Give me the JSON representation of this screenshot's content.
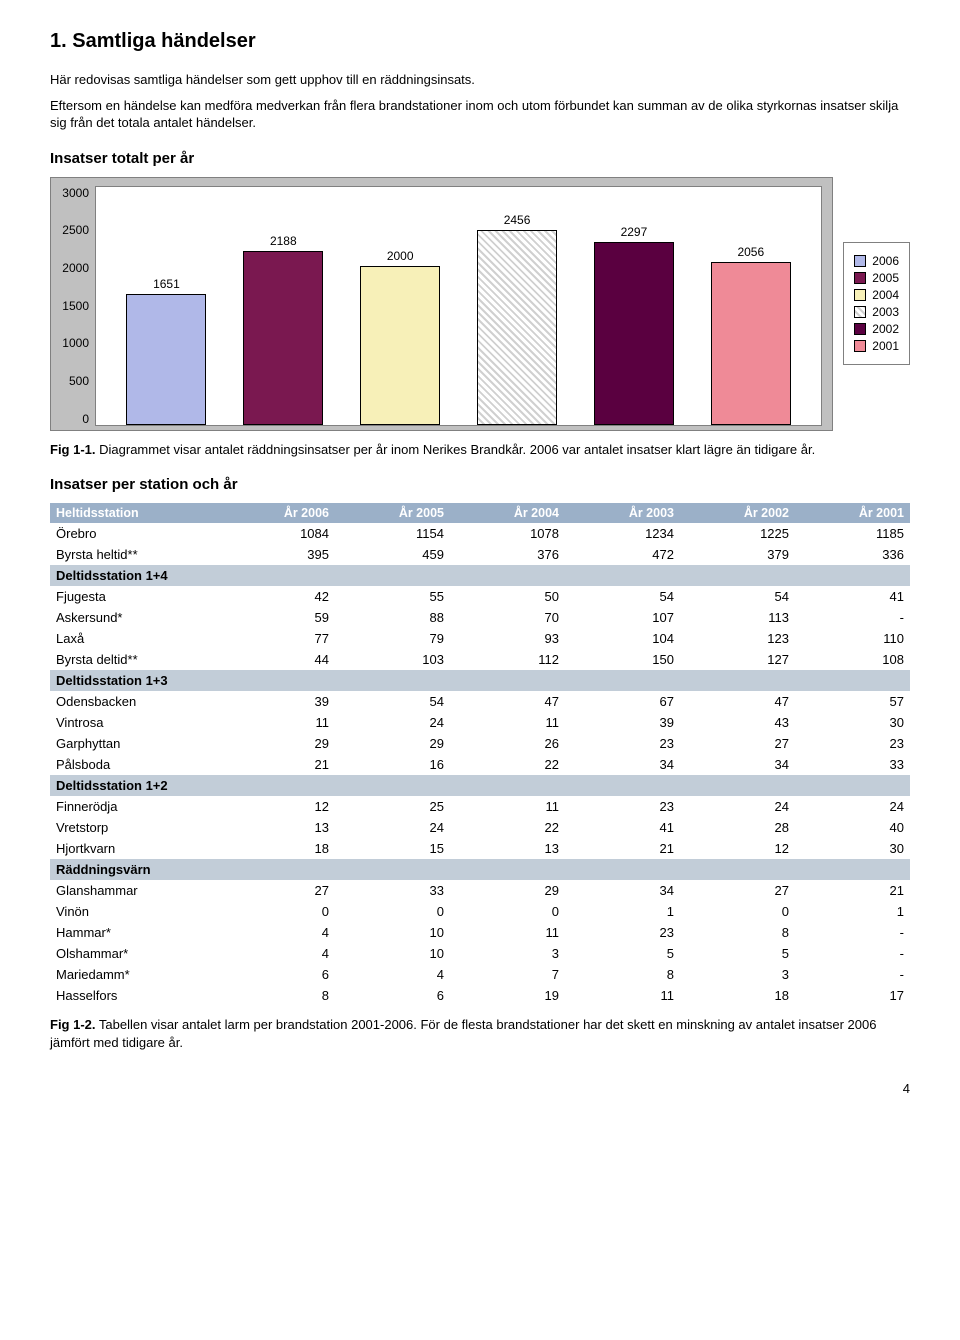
{
  "title": "1. Samtliga händelser",
  "intro1": "Här redovisas samtliga händelser som gett upphov till en räddningsinsats.",
  "intro2": "Eftersom en händelse kan medföra medverkan från flera brandstationer inom och utom förbundet kan summan av de olika styrkornas insatser skilja sig från det totala antalet händelser.",
  "chart": {
    "heading": "Insatser totalt per år",
    "type": "bar",
    "ymax": 3000,
    "ytick_step": 500,
    "yticks": [
      "0",
      "500",
      "1000",
      "1500",
      "2000",
      "2500",
      "3000"
    ],
    "background_color": "#c0c0c0",
    "plot_background": "#ffffff",
    "border_color": "#808080",
    "label_fontsize": 12,
    "bars": [
      {
        "value": 1651,
        "label": "1651",
        "color": "#b0b8e8",
        "hatch": false
      },
      {
        "value": 2188,
        "label": "2188",
        "color": "#7a1850",
        "hatch": false
      },
      {
        "value": 2000,
        "label": "2000",
        "color": "#f7f0b8",
        "hatch": false
      },
      {
        "value": 2456,
        "label": "2456",
        "color": "#ffffff",
        "hatch": true
      },
      {
        "value": 2297,
        "label": "2297",
        "color": "#5a0040",
        "hatch": false
      },
      {
        "value": 2056,
        "label": "2056",
        "color": "#ef8a97",
        "hatch": false
      }
    ],
    "legend": [
      {
        "label": "2006",
        "color": "#b0b8e8",
        "hatch": false
      },
      {
        "label": "2005",
        "color": "#7a1850",
        "hatch": false
      },
      {
        "label": "2004",
        "color": "#f7f0b8",
        "hatch": false
      },
      {
        "label": "2003",
        "color": "#ffffff",
        "hatch": true
      },
      {
        "label": "2002",
        "color": "#5a0040",
        "hatch": false
      },
      {
        "label": "2001",
        "color": "#ef8a97",
        "hatch": false
      }
    ]
  },
  "fig1_caption_b": "Fig 1-1.",
  "fig1_caption": " Diagrammet visar antalet räddningsinsatser per år inom Nerikes Brandkår. 2006 var antalet insatser klart lägre än tidigare år.",
  "table": {
    "heading": "Insatser per station och år",
    "columns": [
      "Heltidsstation",
      "År 2006",
      "År 2005",
      "År 2004",
      "År 2003",
      "År 2002",
      "År 2001"
    ],
    "col_align": [
      "left",
      "right",
      "right",
      "right",
      "right",
      "right",
      "right"
    ],
    "header_bg": "#9bb0c8",
    "header_fg": "#ffffff",
    "section_bg": "#c2cdd8",
    "rows": [
      {
        "cells": [
          "Örebro",
          "1084",
          "1154",
          "1078",
          "1234",
          "1225",
          "1185"
        ]
      },
      {
        "cells": [
          "Byrsta heltid**",
          "395",
          "459",
          "376",
          "472",
          "379",
          "336"
        ]
      },
      {
        "section": "Deltidsstation 1+4"
      },
      {
        "cells": [
          "Fjugesta",
          "42",
          "55",
          "50",
          "54",
          "54",
          "41"
        ]
      },
      {
        "cells": [
          "Askersund*",
          "59",
          "88",
          "70",
          "107",
          "113",
          "-"
        ]
      },
      {
        "cells": [
          "Laxå",
          "77",
          "79",
          "93",
          "104",
          "123",
          "110"
        ]
      },
      {
        "cells": [
          "Byrsta deltid**",
          "44",
          "103",
          "112",
          "150",
          "127",
          "108"
        ]
      },
      {
        "section": "Deltidsstation 1+3"
      },
      {
        "cells": [
          "Odensbacken",
          "39",
          "54",
          "47",
          "67",
          "47",
          "57"
        ]
      },
      {
        "cells": [
          "Vintrosa",
          "11",
          "24",
          "11",
          "39",
          "43",
          "30"
        ]
      },
      {
        "cells": [
          "Garphyttan",
          "29",
          "29",
          "26",
          "23",
          "27",
          "23"
        ]
      },
      {
        "cells": [
          "Pålsboda",
          "21",
          "16",
          "22",
          "34",
          "34",
          "33"
        ]
      },
      {
        "section": "Deltidsstation 1+2"
      },
      {
        "cells": [
          "Finnerödja",
          "12",
          "25",
          "11",
          "23",
          "24",
          "24"
        ]
      },
      {
        "cells": [
          "Vretstorp",
          "13",
          "24",
          "22",
          "41",
          "28",
          "40"
        ]
      },
      {
        "cells": [
          "Hjortkvarn",
          "18",
          "15",
          "13",
          "21",
          "12",
          "30"
        ]
      },
      {
        "section": "Räddningsvärn"
      },
      {
        "cells": [
          "Glanshammar",
          "27",
          "33",
          "29",
          "34",
          "27",
          "21"
        ]
      },
      {
        "cells": [
          "Vinön",
          "0",
          "0",
          "0",
          "1",
          "0",
          "1"
        ]
      },
      {
        "cells": [
          "Hammar*",
          "4",
          "10",
          "11",
          "23",
          "8",
          "-"
        ]
      },
      {
        "cells": [
          "Olshammar*",
          "4",
          "10",
          "3",
          "5",
          "5",
          "-"
        ]
      },
      {
        "cells": [
          "Mariedamm*",
          "6",
          "4",
          "7",
          "8",
          "3",
          "-"
        ]
      },
      {
        "cells": [
          "Hasselfors",
          "8",
          "6",
          "19",
          "11",
          "18",
          "17"
        ]
      }
    ]
  },
  "fig2_caption_b": "Fig 1-2.",
  "fig2_caption": " Tabellen visar antalet larm per brandstation 2001-2006. För de flesta brandstationer har det skett en minskning av antalet insatser 2006 jämfört med tidigare år.",
  "page_number": "4"
}
